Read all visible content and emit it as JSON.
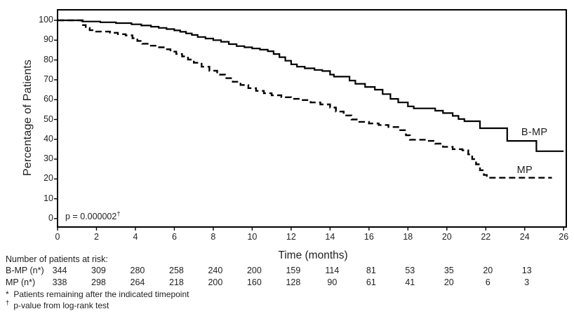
{
  "chart_data": {
    "type": "line",
    "subtype": "kaplan-meier-step-curves",
    "title": "",
    "xlabel": "Time (months)",
    "ylabel": "Percentage of Patients",
    "xlim": [
      0,
      26
    ],
    "ylim": [
      0,
      100
    ],
    "x_ticks": [
      0,
      2,
      4,
      6,
      8,
      10,
      12,
      14,
      16,
      18,
      20,
      22,
      24,
      26
    ],
    "y_ticks": [
      0,
      10,
      20,
      30,
      40,
      50,
      60,
      70,
      80,
      90,
      100
    ],
    "grid": false,
    "legend_position": "curve-end-labels",
    "annotation_text": "p = 0.000002",
    "annotation_sup": "†",
    "series": [
      {
        "name": "B-MP",
        "line_style": "solid",
        "color": "#000000",
        "label_at": {
          "month": 24.5,
          "percent": 43.5
        },
        "points": [
          [
            0,
            100
          ],
          [
            1.3,
            99.4
          ],
          [
            2.2,
            99.0
          ],
          [
            3.0,
            98.6
          ],
          [
            3.8,
            98.0
          ],
          [
            4.3,
            97.4
          ],
          [
            4.8,
            96.8
          ],
          [
            5.2,
            96.2
          ],
          [
            5.6,
            95.6
          ],
          [
            6.0,
            94.9
          ],
          [
            6.3,
            94.2
          ],
          [
            6.6,
            93.4
          ],
          [
            6.9,
            92.6
          ],
          [
            7.2,
            91.6
          ],
          [
            7.6,
            90.8
          ],
          [
            8.0,
            90.0
          ],
          [
            8.4,
            89.2
          ],
          [
            8.8,
            88.0
          ],
          [
            9.2,
            87.0
          ],
          [
            9.6,
            86.4
          ],
          [
            10.0,
            85.8
          ],
          [
            10.4,
            85.2
          ],
          [
            10.8,
            84.4
          ],
          [
            11.1,
            83.0
          ],
          [
            11.4,
            81.4
          ],
          [
            11.7,
            79.6
          ],
          [
            12.0,
            77.8
          ],
          [
            12.3,
            76.6
          ],
          [
            12.7,
            75.8
          ],
          [
            13.2,
            75.0
          ],
          [
            13.6,
            74.4
          ],
          [
            14.0,
            72.6
          ],
          [
            14.2,
            71.6
          ],
          [
            15.0,
            69.6
          ],
          [
            15.3,
            68.0
          ],
          [
            15.8,
            66.4
          ],
          [
            16.3,
            65.0
          ],
          [
            16.7,
            62.8
          ],
          [
            17.1,
            60.4
          ],
          [
            17.5,
            58.6
          ],
          [
            18.0,
            56.6
          ],
          [
            18.3,
            55.6
          ],
          [
            19.4,
            54.4
          ],
          [
            19.8,
            53.2
          ],
          [
            20.3,
            51.8
          ],
          [
            20.6,
            50.2
          ],
          [
            20.9,
            49.1
          ],
          [
            21.7,
            45.6
          ],
          [
            23.1,
            39.2
          ],
          [
            24.6,
            34.0
          ],
          [
            26.0,
            34.0
          ]
        ]
      },
      {
        "name": "MP",
        "line_style": "dashed",
        "color": "#000000",
        "label_at": {
          "month": 24.0,
          "percent": 24.5
        },
        "points": [
          [
            0,
            100
          ],
          [
            1.25,
            97.6
          ],
          [
            1.45,
            96.2
          ],
          [
            1.65,
            95.0
          ],
          [
            1.85,
            94.3
          ],
          [
            2.7,
            93.7
          ],
          [
            3.1,
            93.0
          ],
          [
            3.5,
            92.4
          ],
          [
            3.85,
            91.0
          ],
          [
            4.1,
            89.6
          ],
          [
            4.35,
            88.2
          ],
          [
            4.7,
            87.2
          ],
          [
            5.1,
            86.4
          ],
          [
            5.5,
            85.4
          ],
          [
            5.8,
            84.2
          ],
          [
            6.1,
            83.0
          ],
          [
            6.4,
            81.8
          ],
          [
            6.7,
            80.2
          ],
          [
            7.0,
            78.6
          ],
          [
            7.4,
            76.6
          ],
          [
            7.8,
            74.6
          ],
          [
            8.2,
            72.6
          ],
          [
            8.6,
            70.8
          ],
          [
            9.0,
            69.0
          ],
          [
            9.4,
            67.4
          ],
          [
            9.8,
            65.8
          ],
          [
            10.2,
            64.4
          ],
          [
            10.6,
            63.2
          ],
          [
            11.0,
            62.2
          ],
          [
            11.5,
            61.2
          ],
          [
            12.0,
            60.4
          ],
          [
            12.5,
            59.8
          ],
          [
            13.0,
            58.6
          ],
          [
            13.5,
            57.6
          ],
          [
            14.0,
            56.0
          ],
          [
            14.3,
            54.0
          ],
          [
            14.7,
            52.0
          ],
          [
            15.1,
            50.0
          ],
          [
            15.5,
            48.8
          ],
          [
            16.0,
            48.0
          ],
          [
            16.5,
            47.2
          ],
          [
            17.0,
            46.2
          ],
          [
            17.5,
            44.6
          ],
          [
            17.9,
            42.0
          ],
          [
            18.1,
            39.8
          ],
          [
            19.0,
            39.2
          ],
          [
            19.4,
            37.8
          ],
          [
            19.8,
            36.2
          ],
          [
            20.3,
            35.0
          ],
          [
            20.8,
            34.4
          ],
          [
            21.1,
            32.4
          ],
          [
            21.3,
            30.0
          ],
          [
            21.5,
            27.4
          ],
          [
            21.7,
            24.4
          ],
          [
            21.9,
            22.0
          ],
          [
            22.05,
            20.6
          ],
          [
            25.4,
            20.6
          ]
        ]
      }
    ]
  },
  "risk_table": {
    "title": "Number of patients at risk:",
    "timepoints": [
      0,
      2,
      4,
      6,
      8,
      10,
      12,
      14,
      16,
      18,
      20,
      22,
      24
    ],
    "rows": [
      {
        "label": "B-MP (n*)",
        "values": [
          344,
          309,
          280,
          258,
          240,
          200,
          159,
          114,
          81,
          53,
          35,
          20,
          13
        ]
      },
      {
        "label": "MP (n*)",
        "values": [
          338,
          298,
          264,
          218,
          200,
          160,
          128,
          90,
          61,
          41,
          20,
          6,
          3
        ]
      }
    ]
  },
  "footnotes": [
    {
      "marker": "*",
      "text": "Patients remaining after the indicated timepoint"
    },
    {
      "marker": "†",
      "text": "p-value from log-rank test"
    }
  ],
  "colors": {
    "line": "#000000",
    "text": "#1f1f1f",
    "background": "#ffffff"
  }
}
